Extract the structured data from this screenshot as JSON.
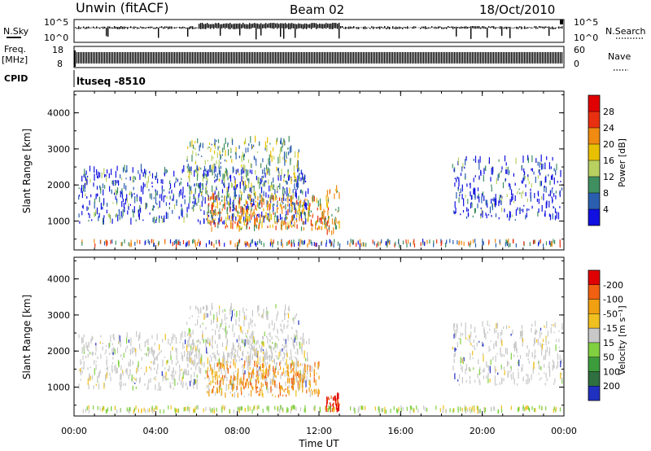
{
  "header": {
    "station": "Unwin (fitACF)",
    "beam": "Beam 02",
    "date": "18/Oct/2010"
  },
  "nsky_panel": {
    "label": "N.Sky",
    "left_ticks": [
      "10^5",
      "10^0"
    ],
    "right_ticks": [
      "10^5",
      "10^0"
    ],
    "right_label": "N.Search"
  },
  "freq_panel": {
    "label_line1": "Freq.",
    "label_line2": "[MHz]",
    "left_ticks": [
      "18",
      "8"
    ],
    "right_ticks": [
      "60",
      "0"
    ],
    "right_label": "Nave"
  },
  "cpid_panel": {
    "label": "CPID",
    "value": "ltuseq -8510"
  },
  "chart_data": [
    {
      "type": "heatmap",
      "name": "power",
      "ylabel": "Slant Range [km]",
      "ylim": [
        200,
        4600
      ],
      "yticks": [
        1000,
        2000,
        3000,
        4000
      ],
      "xlim": [
        0,
        24
      ],
      "colorbar": {
        "label": "Power [dB]",
        "ticks": [
          "4",
          "8",
          "12",
          "16",
          "20",
          "24",
          "28"
        ],
        "colors": [
          "#1010e0",
          "#2a5fb0",
          "#3f8f60",
          "#b8d060",
          "#e8c000",
          "#f08a10",
          "#e83010",
          "#e00000"
        ]
      },
      "regions": [
        {
          "t_start": 0.2,
          "t_end": 11.5,
          "r_min": 900,
          "r_max": 2400,
          "level": "low-mid"
        },
        {
          "t_start": 5.5,
          "t_end": 11.0,
          "r_min": 1600,
          "r_max": 3200,
          "level": "mid"
        },
        {
          "t_start": 6.5,
          "t_end": 12.5,
          "r_min": 700,
          "r_max": 1600,
          "level": "high"
        },
        {
          "t_start": 12.3,
          "t_end": 13.0,
          "r_min": 600,
          "r_max": 1900,
          "level": "high"
        },
        {
          "t_start": 18.5,
          "t_end": 23.9,
          "r_min": 1000,
          "r_max": 2700,
          "level": "low-mid"
        }
      ]
    },
    {
      "type": "heatmap",
      "name": "velocity",
      "ylabel": "Slant Range [km]",
      "ylim": [
        200,
        4600
      ],
      "yticks": [
        1000,
        2000,
        3000,
        4000
      ],
      "xlim": [
        0,
        24
      ],
      "xticks": [
        "00:00",
        "04:00",
        "08:00",
        "12:00",
        "16:00",
        "20:00",
        "00:00"
      ],
      "xlabel": "Time UT",
      "colorbar": {
        "label": "Velocity [m s⁻¹]",
        "ticks": [
          "200",
          "100",
          "50",
          "15",
          "-15",
          "-50",
          "-100",
          "-200"
        ],
        "colors": [
          "#2030c0",
          "#2f6f40",
          "#3c9c3c",
          "#80d040",
          "#c8c8c8",
          "#f0c020",
          "#f0a010",
          "#f06010",
          "#e00000"
        ]
      },
      "regions": [
        {
          "t_start": 0.2,
          "t_end": 11.5,
          "r_min": 900,
          "r_max": 2400,
          "velocity": "near-zero"
        },
        {
          "t_start": 5.5,
          "t_end": 11.0,
          "r_min": 1600,
          "r_max": 3200,
          "velocity": "near-zero"
        },
        {
          "t_start": 6.5,
          "t_end": 12.0,
          "r_min": 700,
          "r_max": 1600,
          "velocity": "negative"
        },
        {
          "t_start": 12.3,
          "t_end": 13.0,
          "r_min": 300,
          "r_max": 700,
          "velocity": "strong-negative"
        },
        {
          "t_start": 18.5,
          "t_end": 23.9,
          "r_min": 1000,
          "r_max": 2700,
          "velocity": "near-zero"
        }
      ]
    }
  ]
}
